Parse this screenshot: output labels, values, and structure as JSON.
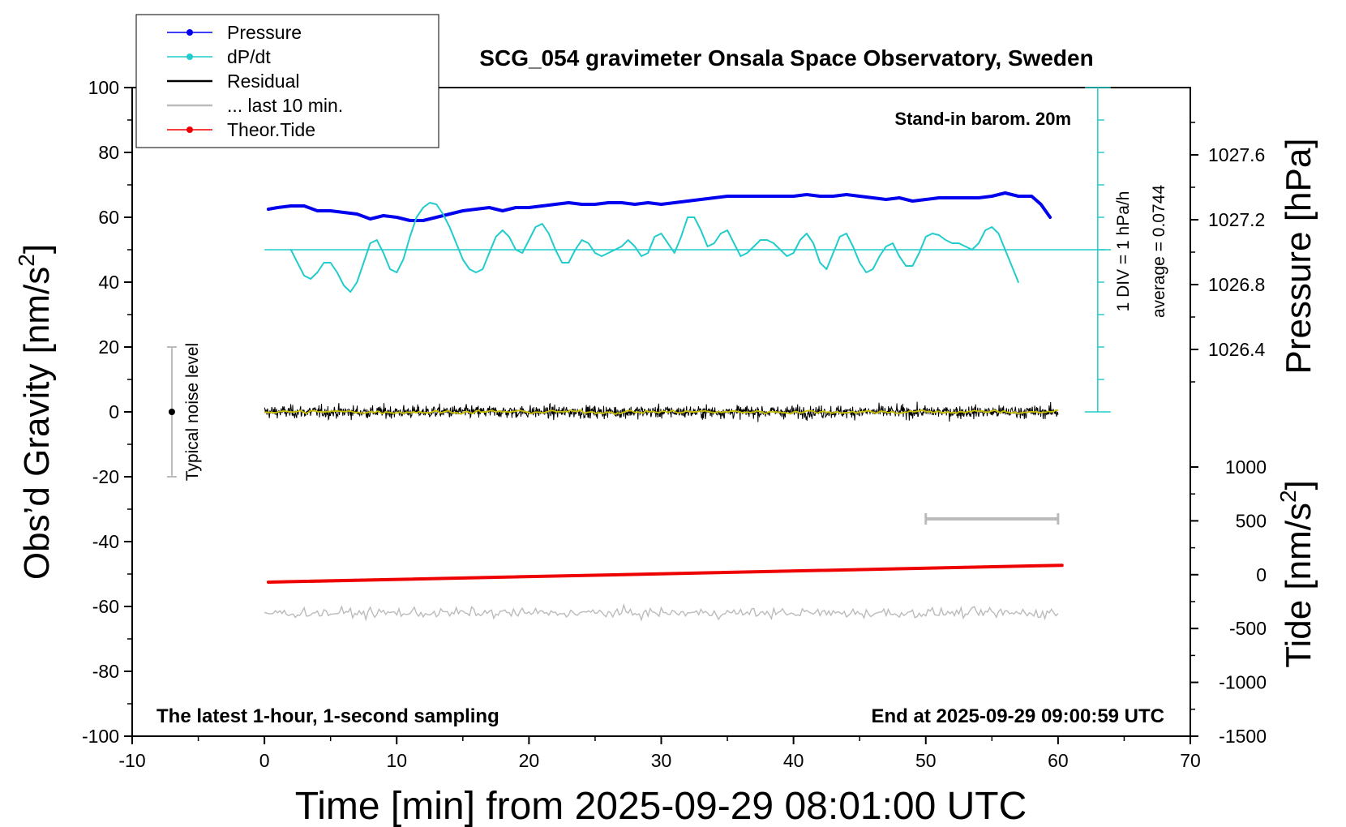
{
  "chart_data": {
    "type": "line",
    "title": "SCG_054 gravimeter Onsala Space Observatory, Sweden",
    "xlabel": "Time [min] from 2025-09-29 08:01:00 UTC",
    "xlim": [
      -10,
      70
    ],
    "x_ticks": [
      "-10",
      "0",
      "10",
      "20",
      "30",
      "40",
      "50",
      "60",
      "70"
    ],
    "left_axis": {
      "label_main": "Obs’d Gravity [nm/s",
      "label_sup": "2",
      "label_end": "]",
      "ylim": [
        -100,
        100
      ],
      "ticks": [
        "-100",
        "-80",
        "-60",
        "-40",
        "-20",
        "0",
        "20",
        "40",
        "60",
        "80",
        "100"
      ]
    },
    "pressure_axis": {
      "label": "Pressure [hPa]",
      "ticks": [
        "1026.4",
        "1026.8",
        "1027.2",
        "1027.6"
      ],
      "tick_values": [
        1026.4,
        1026.8,
        1027.2,
        1027.6
      ]
    },
    "tide_axis": {
      "label_main": "Tide [nm/s",
      "label_sup": "2",
      "label_end": "]",
      "ticks": [
        "-1500",
        "-1000",
        "-500",
        "0",
        "500",
        "1000"
      ],
      "tick_values": [
        -1500,
        -1000,
        -500,
        0,
        500,
        1000
      ]
    },
    "legend": {
      "placement": "top-left",
      "entries": [
        {
          "name": "Pressure",
          "color": "#0000ee",
          "marker": true
        },
        {
          "name": "dP/dt",
          "color": "#22cccc",
          "marker": true
        },
        {
          "name": "Residual",
          "color": "#000000",
          "marker": false
        },
        {
          "name": "... last 10 min.",
          "color": "#bbbbbb",
          "marker": false
        },
        {
          "name": "Theor.Tide",
          "color": "#ee0000",
          "marker": true
        }
      ]
    },
    "annotations": {
      "barometer": "Stand-in barom. 20m",
      "div_label": "1 DIV = 1 hPa/h",
      "average_label": "average = 0.0744",
      "noise_label": "Typical noise level",
      "bottom_left": "The latest 1-hour, 1-second sampling",
      "bottom_right": "End at 2025-09-29 09:00:59 UTC"
    },
    "series": [
      {
        "name": "Pressure",
        "color": "#0000ee",
        "x": [
          0.3,
          1,
          2,
          3,
          4,
          5,
          6,
          7,
          8,
          9,
          10,
          11,
          12,
          13,
          14,
          15,
          16,
          17,
          18,
          19,
          20,
          21,
          22,
          23,
          24,
          25,
          26,
          27,
          28,
          29,
          30,
          31,
          32,
          33,
          34,
          35,
          36,
          37,
          38,
          39,
          40,
          41,
          42,
          43,
          44,
          45,
          46,
          47,
          48,
          49,
          50,
          51,
          52,
          53,
          54,
          55,
          56,
          57,
          58,
          58.7,
          59.4
        ],
        "y": [
          62.5,
          63,
          63.5,
          63.5,
          62,
          62,
          61.5,
          61,
          59.5,
          60.5,
          60,
          59,
          59,
          60,
          61,
          62,
          62.5,
          63,
          62,
          63,
          63,
          63.5,
          64,
          64.5,
          64,
          64,
          64.5,
          64.5,
          64,
          64.5,
          64,
          64.5,
          65,
          65.5,
          66,
          66.5,
          66.5,
          66.5,
          66.5,
          66.5,
          66.5,
          67,
          66.5,
          66.5,
          67,
          66.5,
          66,
          65.5,
          66,
          65,
          65.5,
          66,
          66,
          66,
          66,
          66.5,
          67.5,
          66.5,
          66.5,
          64,
          60
        ]
      },
      {
        "name": "dP/dt",
        "color": "#22cccc",
        "x": [
          2,
          2.5,
          3,
          3.5,
          4,
          4.5,
          5,
          5.5,
          6,
          6.5,
          7,
          7.5,
          8,
          8.5,
          9,
          9.5,
          10,
          10.5,
          11,
          11.5,
          12,
          12.5,
          13,
          13.5,
          14,
          14.5,
          15,
          15.5,
          16,
          16.5,
          17,
          17.5,
          18,
          18.5,
          19,
          19.5,
          20,
          20.5,
          21,
          21.5,
          22,
          22.5,
          23,
          23.5,
          24,
          24.5,
          25,
          25.5,
          26,
          26.5,
          27,
          27.5,
          28,
          28.5,
          29,
          29.5,
          30,
          30.5,
          31,
          31.5,
          32,
          32.5,
          33,
          33.5,
          34,
          34.5,
          35,
          35.5,
          36,
          36.5,
          37,
          37.5,
          38,
          38.5,
          39,
          39.5,
          40,
          40.5,
          41,
          41.5,
          42,
          42.5,
          43,
          43.5,
          44,
          44.5,
          45,
          45.5,
          46,
          46.5,
          47,
          47.5,
          48,
          48.5,
          49,
          49.5,
          50,
          50.5,
          51,
          51.5,
          52,
          52.5,
          53,
          53.5,
          54,
          54.5,
          55,
          55.5,
          56,
          56.5,
          57
        ],
        "y": [
          50,
          46,
          42,
          41,
          43,
          46,
          46,
          43,
          39,
          37,
          40,
          46,
          52,
          53,
          49,
          44,
          43,
          47,
          54,
          60,
          63,
          64.5,
          64,
          61,
          57,
          52,
          47,
          44,
          43,
          44,
          49,
          54,
          56,
          54,
          50,
          49,
          53,
          57,
          58,
          55,
          50,
          46,
          46,
          50,
          53,
          52,
          49,
          48,
          49,
          50,
          51,
          53,
          51,
          48,
          49,
          54,
          55,
          52,
          49,
          54,
          60,
          60,
          56,
          51,
          52,
          55,
          56,
          52,
          48,
          49,
          51,
          53,
          53,
          52,
          50,
          48,
          49,
          53,
          55,
          52,
          46,
          44,
          49,
          54,
          55,
          51,
          46,
          43,
          44,
          48,
          51,
          52,
          48,
          45,
          45,
          49,
          54,
          55,
          54.5,
          53,
          52,
          52,
          51,
          50,
          52,
          56,
          57,
          55,
          50,
          45,
          40
        ]
      },
      {
        "name": "Residual",
        "color": "#000000",
        "x_range": [
          0,
          60
        ],
        "y_center": 0,
        "y_range": [
          -10,
          10
        ]
      },
      {
        "name": "... last 10 min.",
        "color": "#bbbbbb",
        "x_range": [
          0,
          60
        ],
        "y_center": -62,
        "y_range": [
          -69,
          -56
        ]
      },
      {
        "name": "Theor.Tide",
        "color": "#ee0000",
        "x": [
          0.3,
          60.3
        ],
        "y": [
          -52.5,
          -47.3
        ]
      }
    ],
    "mean_line": {
      "name": "dP/dt average",
      "color": "#22cccc",
      "y": 50,
      "x_range": [
        0,
        64
      ]
    },
    "noise_bar": {
      "x": -7,
      "y_center": 0,
      "y_range": [
        -20,
        20
      ]
    },
    "window_bar": {
      "x_range": [
        50,
        60
      ],
      "y": -33
    },
    "div_scale": {
      "x": 63,
      "y_range": [
        0,
        100
      ],
      "divisions": 10
    },
    "grid": false
  }
}
